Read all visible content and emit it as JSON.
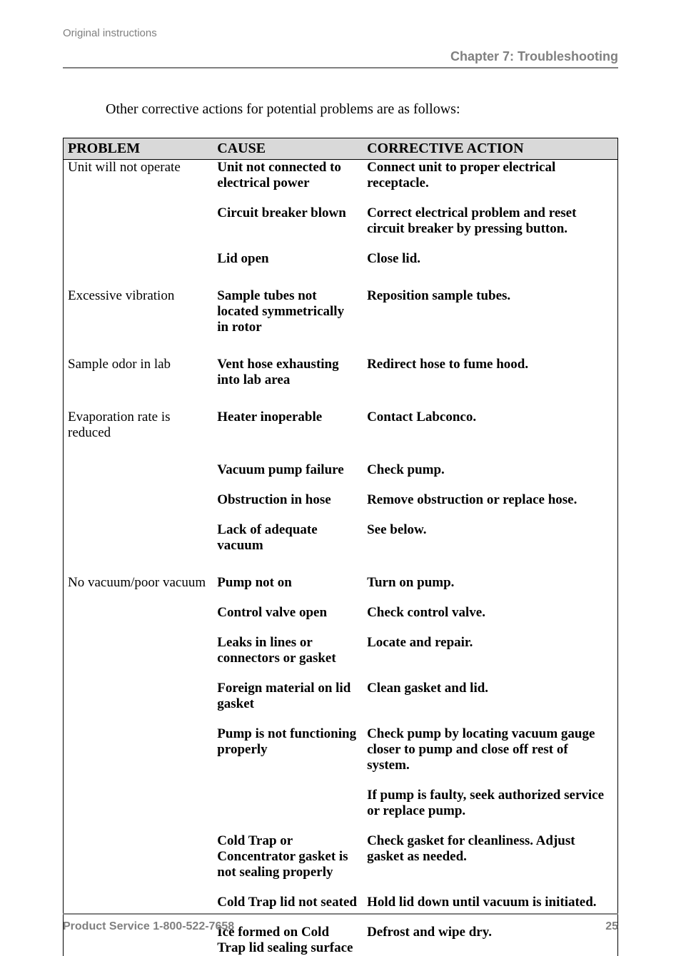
{
  "header": {
    "original": "Original instructions",
    "chapter": "Chapter 7: Troubleshooting"
  },
  "intro": "Other corrective actions for potential problems are as follows:",
  "table": {
    "headers": {
      "problem": "PROBLEM",
      "cause": "CAUSE",
      "action": "CORRECTIVE ACTION"
    },
    "rows": [
      {
        "type": "row",
        "problem": "Unit will not operate",
        "cause": "Unit not connected to electrical power",
        "action": "Connect unit to proper electrical receptacle."
      },
      {
        "type": "gap"
      },
      {
        "type": "row",
        "problem": "",
        "cause": "Circuit breaker blown",
        "action": "Correct electrical problem and reset circuit breaker by pressing button."
      },
      {
        "type": "gap"
      },
      {
        "type": "row",
        "problem": "",
        "cause": "Lid open",
        "action": "Close lid."
      },
      {
        "type": "biggap"
      },
      {
        "type": "row",
        "problem": "Excessive vibration",
        "cause": "Sample tubes not located symmetrically in rotor",
        "action": "Reposition sample tubes."
      },
      {
        "type": "biggap"
      },
      {
        "type": "row",
        "problem": "Sample odor in lab",
        "cause": "Vent hose exhausting into lab area",
        "action": "Redirect hose to fume hood."
      },
      {
        "type": "biggap"
      },
      {
        "type": "row",
        "problem": "Evaporation rate is reduced",
        "cause": "Heater inoperable",
        "action": "Contact Labconco."
      },
      {
        "type": "biggap"
      },
      {
        "type": "row",
        "problem": "",
        "cause": "Vacuum pump failure",
        "action": "Check pump."
      },
      {
        "type": "gap"
      },
      {
        "type": "row",
        "problem": "",
        "cause": "Obstruction in hose",
        "action": "Remove obstruction or replace hose."
      },
      {
        "type": "gap"
      },
      {
        "type": "row",
        "problem": "",
        "cause": "Lack of adequate vacuum",
        "action": "See below."
      },
      {
        "type": "biggap"
      },
      {
        "type": "row",
        "problem": "No vacuum/poor vacuum",
        "cause": "Pump not on",
        "action": "Turn on pump."
      },
      {
        "type": "gap"
      },
      {
        "type": "row",
        "problem": "",
        "cause": "Control valve open",
        "action": "Check control valve."
      },
      {
        "type": "gap"
      },
      {
        "type": "row",
        "problem": "",
        "cause": "Leaks in lines or connectors or gasket",
        "action": "Locate and repair."
      },
      {
        "type": "gap"
      },
      {
        "type": "row",
        "problem": "",
        "cause": "Foreign material on lid gasket",
        "action": "Clean gasket and lid."
      },
      {
        "type": "gap"
      },
      {
        "type": "row",
        "problem": "",
        "cause": "Pump is not functioning properly",
        "action": "Check pump by locating vacuum gauge closer to pump and close off rest of system."
      },
      {
        "type": "gap"
      },
      {
        "type": "row",
        "problem": "",
        "cause": "",
        "action": "If pump is faulty, seek authorized service or replace pump."
      },
      {
        "type": "gap"
      },
      {
        "type": "row",
        "problem": "",
        "cause": "Cold Trap or Concentrator gasket is not sealing properly",
        "action": "Check gasket for cleanliness.  Adjust gasket as needed."
      },
      {
        "type": "gap"
      },
      {
        "type": "row",
        "problem": "",
        "cause": "Cold Trap lid not seated",
        "action": "Hold lid down until vacuum is initiated."
      },
      {
        "type": "gap"
      },
      {
        "type": "row",
        "problem": "",
        "cause": "Ice formed on Cold Trap lid sealing surface",
        "action": "Defrost and wipe dry."
      }
    ]
  },
  "footer": {
    "service": "Product Service 1-800-522-7658",
    "page": "25"
  },
  "colors": {
    "gray": "#808080",
    "headerbg": "#d9d9d9"
  }
}
